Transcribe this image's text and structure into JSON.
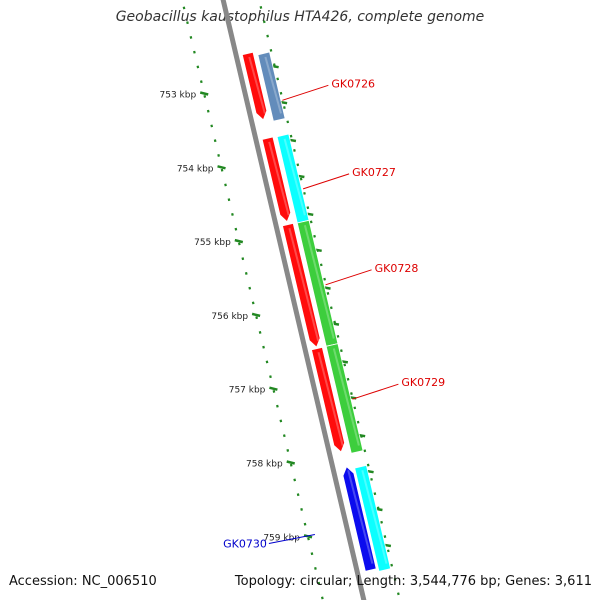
{
  "title": "Geobacillus kaustophilus HTA426, complete genome",
  "footer": {
    "accession": "Accession: NC_006510",
    "summary": "Topology: circular; Length: 3,544,776 bp; Genes: 3,611"
  },
  "axis": {
    "ticks": [
      {
        "label": "753 kbp",
        "kbp": 753
      },
      {
        "label": "754 kbp",
        "kbp": 754
      },
      {
        "label": "755 kbp",
        "kbp": 755
      },
      {
        "label": "756 kbp",
        "kbp": 756
      },
      {
        "label": "757 kbp",
        "kbp": 757
      },
      {
        "label": "758 kbp",
        "kbp": 758
      },
      {
        "label": "759 kbp",
        "kbp": 759
      }
    ]
  },
  "features": [
    {
      "track": "red-forward",
      "color": "#ff0000",
      "start": 752.45,
      "end": 753.35
    },
    {
      "track": "red-forward",
      "color": "#ff0000",
      "start": 753.6,
      "end": 754.73
    },
    {
      "track": "red-forward",
      "color": "#ff0000",
      "start": 754.77,
      "end": 756.43
    },
    {
      "track": "red-forward",
      "color": "#ff0000",
      "start": 756.45,
      "end": 757.85
    },
    {
      "track": "colored",
      "color": "#5b86b8",
      "start": 752.45,
      "end": 753.35
    },
    {
      "track": "colored",
      "color": "#00ffff",
      "start": 753.56,
      "end": 754.73
    },
    {
      "track": "colored",
      "color": "#33cc33",
      "start": 754.73,
      "end": 756.4
    },
    {
      "track": "colored",
      "color": "#33cc33",
      "start": 756.4,
      "end": 757.85
    },
    {
      "track": "colored",
      "color": "#00ffff",
      "start": 758.05,
      "end": 759.45
    },
    {
      "track": "blue-forward",
      "color": "#0000ee",
      "start": 758.05,
      "end": 759.45
    }
  ],
  "gene_labels": [
    {
      "name": "GK0726",
      "color": "#dd0000",
      "kbp": 752.95
    },
    {
      "name": "GK0727",
      "color": "#dd0000",
      "kbp": 754.15
    },
    {
      "name": "GK0728",
      "color": "#dd0000",
      "kbp": 755.45
    },
    {
      "name": "GK0729",
      "color": "#dd0000",
      "kbp": 757.0
    },
    {
      "name": "GK0730",
      "color": "#0000cc",
      "kbp": 759.05
    }
  ]
}
